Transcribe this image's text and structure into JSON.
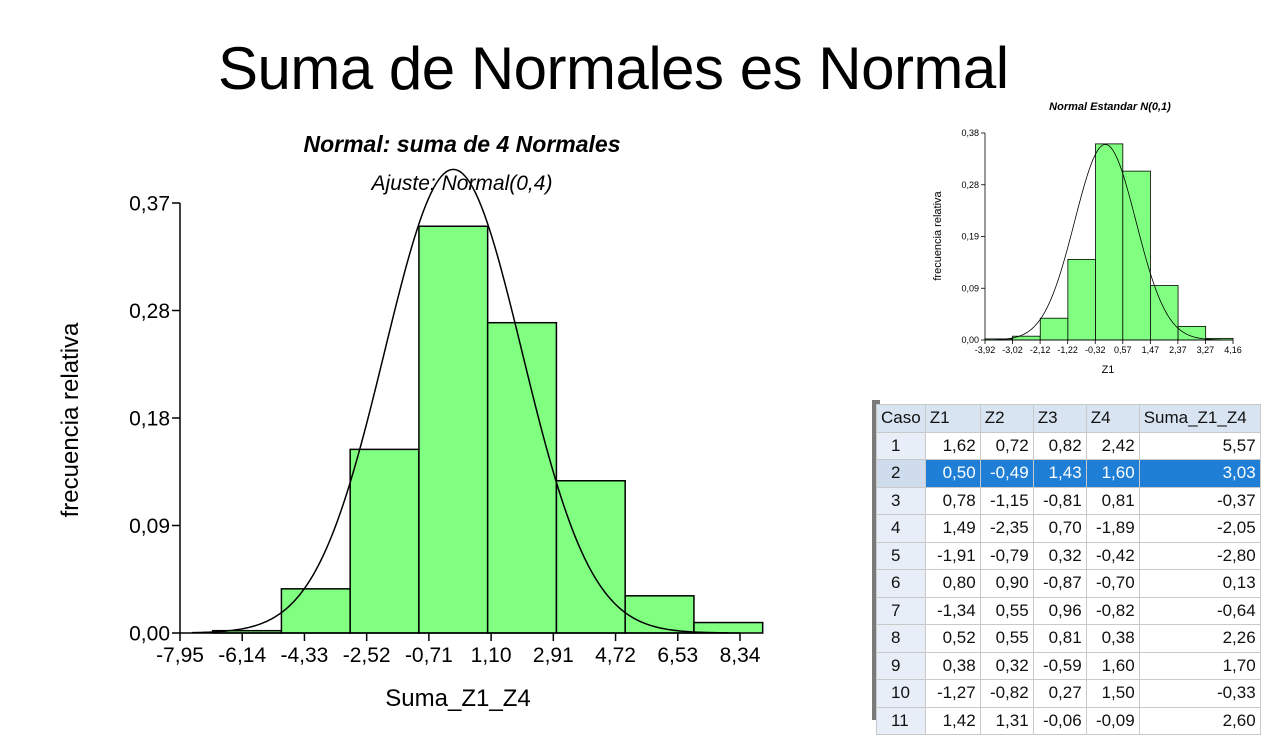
{
  "slide": {
    "title": "Suma de Normales es Normal"
  },
  "chart_data": [
    {
      "type": "bar",
      "title": "Normal: suma de 4 Normales",
      "subtitle": "Ajuste: Normal(0,4)",
      "xlabel": "Suma_Z1_Z4",
      "ylabel": "frecuencia relativa",
      "x_ticks": [
        "-7,95",
        "-6,14",
        "-4,33",
        "-2,52",
        "-0,71",
        "1,10",
        "2,91",
        "4,72",
        "6,53",
        "8,34"
      ],
      "y_ticks": [
        "0,00",
        "0,09",
        "0,18",
        "0,28",
        "0,37"
      ],
      "xlim": [
        -7.95,
        8.34
      ],
      "ylim": [
        0,
        0.37
      ],
      "bins": [
        {
          "from": -7.0,
          "to": -5.0,
          "value": 0.002
        },
        {
          "from": -5.0,
          "to": -3.0,
          "value": 0.038
        },
        {
          "from": -3.0,
          "to": -1.0,
          "value": 0.158
        },
        {
          "from": -1.0,
          "to": 1.0,
          "value": 0.35
        },
        {
          "from": 1.0,
          "to": 3.0,
          "value": 0.267
        },
        {
          "from": 3.0,
          "to": 5.0,
          "value": 0.131
        },
        {
          "from": 5.0,
          "to": 7.0,
          "value": 0.032
        },
        {
          "from": 7.0,
          "to": 9.0,
          "value": 0.009
        }
      ],
      "fit": {
        "type": "normal",
        "mean": 0,
        "variance": 4
      },
      "bar_color": "#80ff80"
    },
    {
      "type": "bar",
      "title": "Normal Estandar N(0,1)",
      "xlabel": "Z1",
      "ylabel": "frecuencia relativa",
      "x_ticks": [
        "-3,92",
        "-3,02",
        "-2,12",
        "-1,22",
        "-0,32",
        "0,57",
        "1,47",
        "2,37",
        "3,27",
        "4,16"
      ],
      "y_ticks": [
        "0,00",
        "0,09",
        "0,19",
        "0,28",
        "0,38"
      ],
      "xlim": [
        -3.92,
        4.16
      ],
      "ylim": [
        0,
        0.38
      ],
      "bins": [
        {
          "from": -3.92,
          "to": -3.02,
          "value": 0.002
        },
        {
          "from": -3.02,
          "to": -2.12,
          "value": 0.007
        },
        {
          "from": -2.12,
          "to": -1.22,
          "value": 0.04
        },
        {
          "from": -1.22,
          "to": -0.32,
          "value": 0.148
        },
        {
          "from": -0.32,
          "to": 0.57,
          "value": 0.36
        },
        {
          "from": 0.57,
          "to": 1.47,
          "value": 0.31
        },
        {
          "from": 1.47,
          "to": 2.37,
          "value": 0.1
        },
        {
          "from": 2.37,
          "to": 3.27,
          "value": 0.025
        },
        {
          "from": 3.27,
          "to": 4.16,
          "value": 0.003
        }
      ],
      "fit": {
        "type": "normal",
        "mean": 0,
        "variance": 1
      },
      "bar_color": "#80ff80"
    }
  ],
  "table": {
    "headers": [
      "Caso",
      "Z1",
      "Z2",
      "Z3",
      "Z4",
      "Suma_Z1_Z4"
    ],
    "rows": [
      [
        "1",
        "1,62",
        "0,72",
        "0,82",
        "2,42",
        "5,57"
      ],
      [
        "2",
        "0,50",
        "-0,49",
        "1,43",
        "1,60",
        "3,03"
      ],
      [
        "3",
        "0,78",
        "-1,15",
        "-0,81",
        "0,81",
        "-0,37"
      ],
      [
        "4",
        "1,49",
        "-2,35",
        "0,70",
        "-1,89",
        "-2,05"
      ],
      [
        "5",
        "-1,91",
        "-0,79",
        "0,32",
        "-0,42",
        "-2,80"
      ],
      [
        "6",
        "0,80",
        "0,90",
        "-0,87",
        "-0,70",
        "0,13"
      ],
      [
        "7",
        "-1,34",
        "0,55",
        "0,96",
        "-0,82",
        "-0,64"
      ],
      [
        "8",
        "0,52",
        "0,55",
        "0,81",
        "0,38",
        "2,26"
      ],
      [
        "9",
        "0,38",
        "0,32",
        "-0,59",
        "1,60",
        "1,70"
      ],
      [
        "10",
        "-1,27",
        "-0,82",
        "0,27",
        "1,50",
        "-0,33"
      ],
      [
        "11",
        "1,42",
        "1,31",
        "-0,06",
        "-0,09",
        "2,60"
      ]
    ],
    "selected_row": 1,
    "selection_color": "#1f7fd6"
  }
}
